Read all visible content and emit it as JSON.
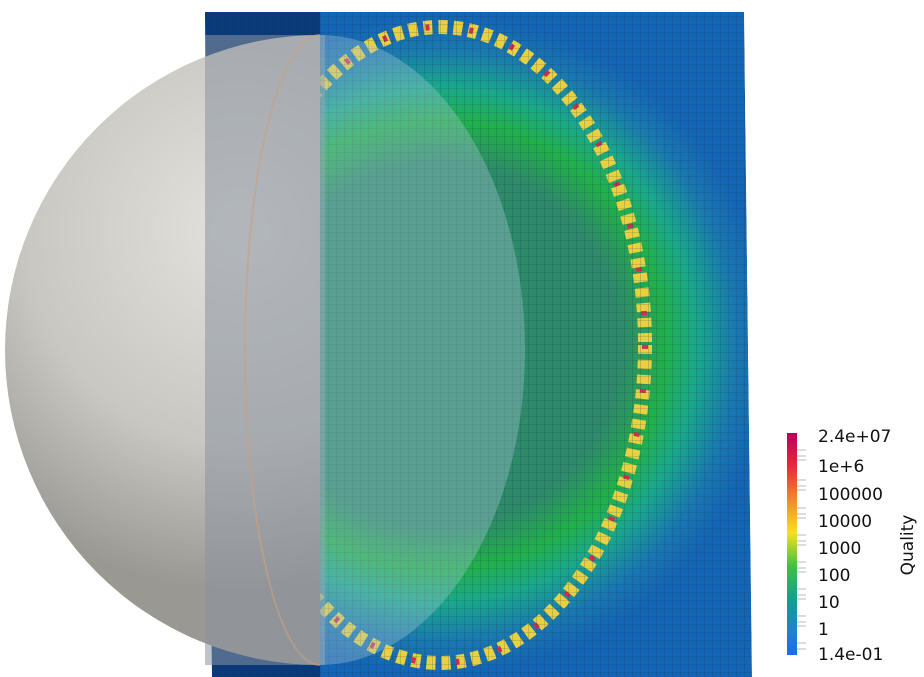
{
  "colorbar": {
    "title": "Quality",
    "labels": [
      "2.4e+07",
      "1e+6",
      "100000",
      "10000",
      "1000",
      "100",
      "10",
      "1",
      "1.4e-01"
    ]
  }
}
